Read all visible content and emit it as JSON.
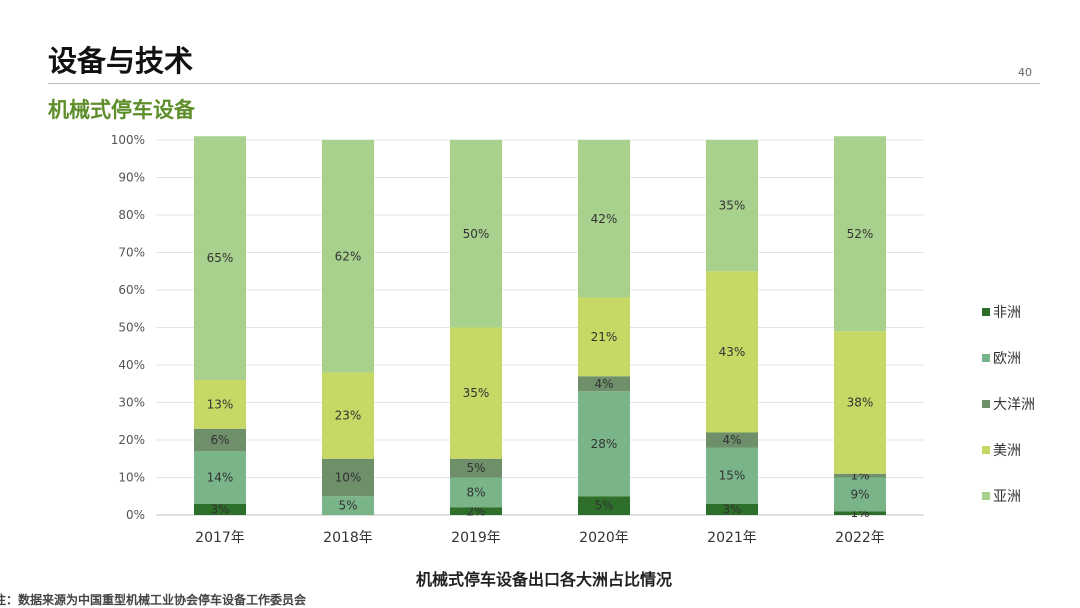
{
  "page": {
    "title": "设备与技术",
    "number": "40",
    "section_title": "机械式停车设备",
    "footnote": "注：数据来源为中国重型机械工业协会停车设备工作委员会"
  },
  "colors": {
    "accent": "#5e8e2a",
    "非洲": "#2e6f2a",
    "欧洲": "#7ab58a",
    "大洋洲": "#6e8f6a",
    "美洲": "#c7d964",
    "亚洲": "#a9d18e"
  },
  "chart_data": {
    "type": "bar",
    "stacked": true,
    "title": "机械式停车设备出口各大洲占比情况",
    "categories": [
      "2017年",
      "2018年",
      "2019年",
      "2020年",
      "2021年",
      "2022年"
    ],
    "series": [
      {
        "name": "非洲",
        "values": [
          3,
          0,
          2,
          5,
          3,
          1
        ],
        "labels": [
          "3%",
          "",
          "2%",
          "5%",
          "3%",
          "1%"
        ]
      },
      {
        "name": "欧洲",
        "values": [
          14,
          5,
          8,
          28,
          15,
          9
        ],
        "labels": [
          "14%",
          "5%",
          "8%",
          "28%",
          "15%",
          "9%"
        ]
      },
      {
        "name": "大洋洲",
        "values": [
          6,
          10,
          5,
          4,
          4,
          1
        ],
        "labels": [
          "6%",
          "10%",
          "5%",
          "4%",
          "4%",
          "1%"
        ]
      },
      {
        "name": "美洲",
        "values": [
          13,
          23,
          35,
          21,
          43,
          38
        ],
        "labels": [
          "13%",
          "23%",
          "35%",
          "21%",
          "43%",
          "38%"
        ]
      },
      {
        "name": "亚洲",
        "values": [
          65,
          62,
          50,
          42,
          35,
          52
        ],
        "labels": [
          "65%",
          "62%",
          "50%",
          "42%",
          "35%",
          "52%"
        ]
      }
    ],
    "legend_order": [
      "非洲",
      "欧洲",
      "大洋洲",
      "美洲",
      "亚洲"
    ],
    "y_ticks": [
      "0%",
      "10%",
      "20%",
      "30%",
      "40%",
      "50%",
      "60%",
      "70%",
      "80%",
      "90%",
      "100%"
    ],
    "ylim": [
      0,
      100
    ],
    "xlabel": "",
    "ylabel": "",
    "grid": true,
    "legend_position": "right"
  }
}
